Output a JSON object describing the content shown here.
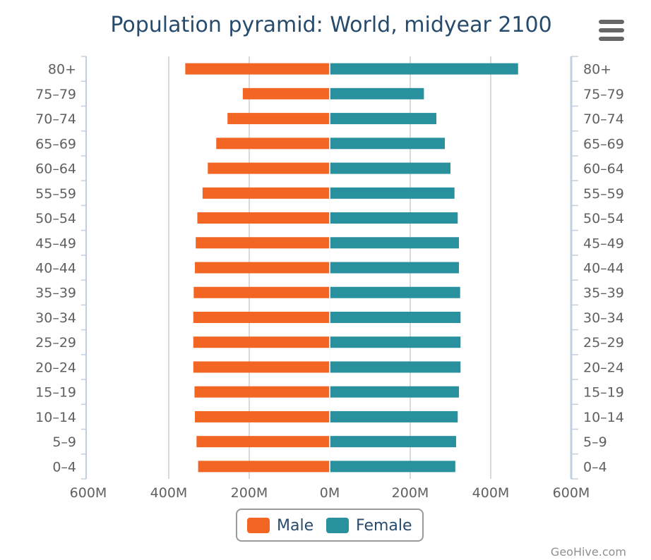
{
  "chart_data": {
    "type": "bar",
    "orientation": "horizontal-pyramid",
    "title": "Population pyramid: World, midyear 2100",
    "categories": [
      "0-4",
      "5-9",
      "10-14",
      "15-19",
      "20-24",
      "25-29",
      "30-34",
      "35-39",
      "40-44",
      "45-49",
      "50-54",
      "55-59",
      "60-64",
      "65-69",
      "70-74",
      "75-79",
      "80+"
    ],
    "category_labels": [
      "0–4",
      "5–9",
      "10–14",
      "15–19",
      "20–24",
      "25–29",
      "30–34",
      "35–39",
      "40–44",
      "45–49",
      "50–54",
      "55–59",
      "60–64",
      "65–69",
      "70–74",
      "75–79",
      "80+"
    ],
    "series": [
      {
        "name": "Male",
        "color": "#f26522",
        "values": [
          327,
          331,
          335,
          336,
          339,
          339,
          339,
          338,
          335,
          333,
          329,
          316,
          303,
          282,
          254,
          216,
          359
        ]
      },
      {
        "name": "Female",
        "color": "#28919d",
        "values": [
          312,
          314,
          318,
          321,
          325,
          325,
          325,
          324,
          321,
          321,
          318,
          310,
          300,
          286,
          265,
          234,
          468
        ]
      }
    ],
    "xlim": [
      -600,
      600
    ],
    "x_unit": "M",
    "x_ticks": [
      -600,
      -400,
      -200,
      0,
      200,
      400,
      600
    ],
    "x_tick_labels": [
      "600M",
      "400M",
      "200M",
      "0M",
      "200M",
      "400M",
      "600M"
    ],
    "xlabel": "",
    "ylabel": "",
    "grid": true,
    "legend": "bottom-center"
  },
  "credits": "GeoHive.com",
  "menu_icon": "hamburger-menu-icon"
}
